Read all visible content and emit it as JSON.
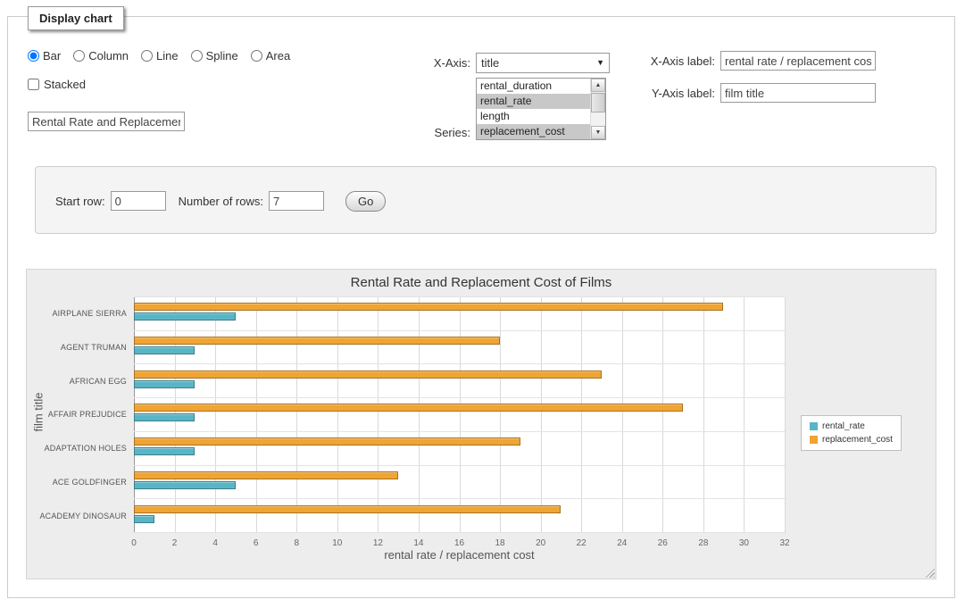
{
  "panel": {
    "legend": "Display chart"
  },
  "controls": {
    "chart_types": [
      {
        "label": "Bar",
        "selected": true
      },
      {
        "label": "Column",
        "selected": false
      },
      {
        "label": "Line",
        "selected": false
      },
      {
        "label": "Spline",
        "selected": false
      },
      {
        "label": "Area",
        "selected": false
      }
    ],
    "stacked": {
      "label": "Stacked",
      "checked": false
    },
    "chart_title_input": {
      "value": "Rental Rate and Replacement Cost of Films"
    },
    "x_axis": {
      "label": "X-Axis:",
      "selected_option": "title"
    },
    "series": {
      "label": "Series:",
      "options": [
        {
          "label": "rental_duration",
          "selected": false
        },
        {
          "label": "rental_rate",
          "selected": true
        },
        {
          "label": "length",
          "selected": false
        },
        {
          "label": "replacement_cost",
          "selected": true
        }
      ]
    },
    "x_axis_label": {
      "label": "X-Axis label:",
      "value": "rental rate / replacement cost"
    },
    "y_axis_label": {
      "label": "Y-Axis label:",
      "value": "film title"
    }
  },
  "row_panel": {
    "start_row": {
      "label": "Start row:",
      "value": "0"
    },
    "number_of_rows": {
      "label": "Number of rows:",
      "value": "7"
    },
    "go_button": "Go"
  },
  "chart_data": {
    "type": "bar",
    "title": "Rental Rate and Replacement Cost of Films",
    "categories": [
      "AIRPLANE SIERRA",
      "AGENT TRUMAN",
      "AFRICAN EGG",
      "AFFAIR PREJUDICE",
      "ADAPTATION HOLES",
      "ACE GOLDFINGER",
      "ACADEMY DINOSAUR"
    ],
    "series": [
      {
        "name": "rental_rate",
        "color": "#58b5c6",
        "values": [
          4.99,
          2.99,
          2.99,
          2.99,
          2.99,
          4.99,
          0.99
        ]
      },
      {
        "name": "replacement_cost",
        "color": "#f0a432",
        "values": [
          28.99,
          17.99,
          22.99,
          26.99,
          18.99,
          12.99,
          20.99
        ]
      }
    ],
    "xlabel": "rental rate / replacement cost",
    "ylabel": "film title",
    "xlim": [
      0,
      32
    ],
    "x_tick_step": 2,
    "grid": true,
    "legend_position": "right",
    "group_order": "reversed"
  }
}
